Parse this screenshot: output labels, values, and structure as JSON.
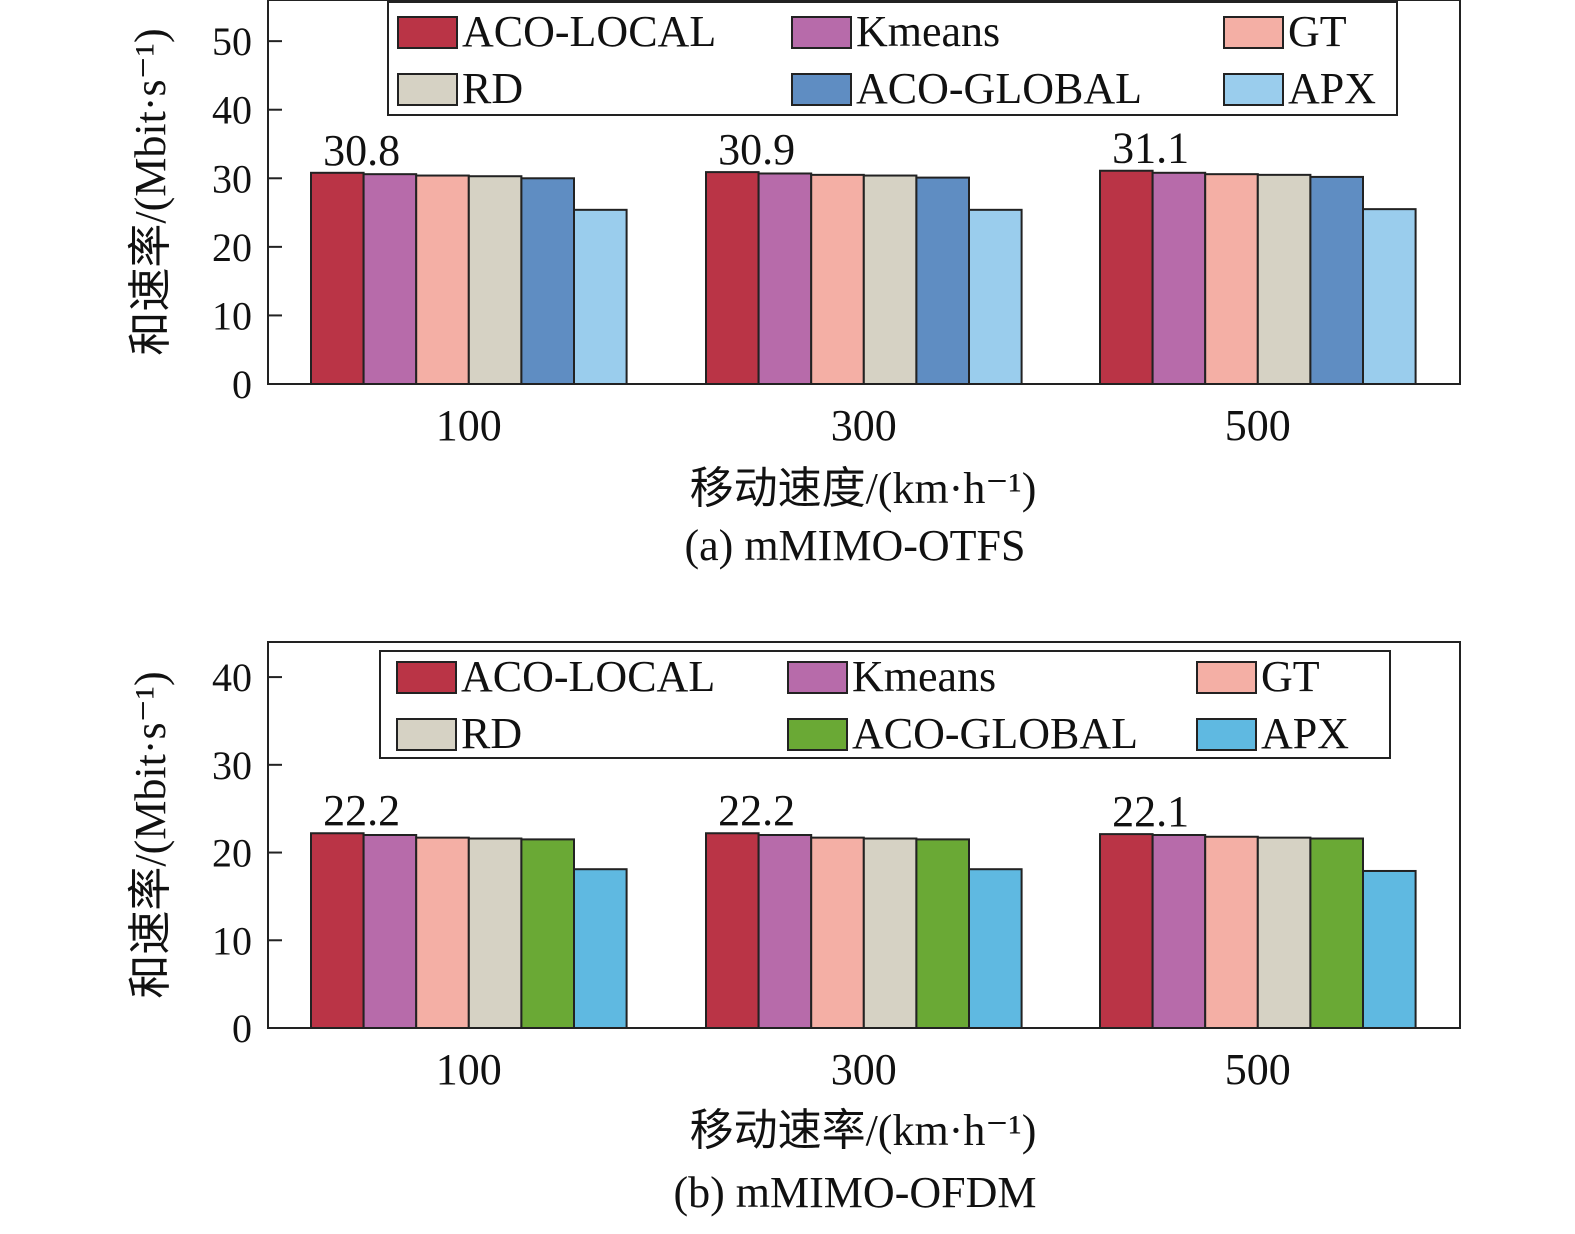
{
  "chart_data": [
    {
      "type": "bar",
      "title": "(a) mMIMO-OTFS",
      "xlabel": "移动速度/(km·h⁻¹)",
      "ylabel": "和速率/(Mbit·s⁻¹)",
      "ylim": [
        0,
        56
      ],
      "yticks": [
        0,
        10,
        20,
        30,
        40,
        50
      ],
      "categories": [
        "100",
        "300",
        "500"
      ],
      "annotations": [
        "30.8",
        "30.9",
        "31.1"
      ],
      "legend_position": "top",
      "series": [
        {
          "name": "ACO-LOCAL",
          "color": "#BA3446",
          "values": [
            30.8,
            30.9,
            31.1
          ]
        },
        {
          "name": "Kmeans",
          "color": "#B76BAA",
          "values": [
            30.6,
            30.7,
            30.8
          ]
        },
        {
          "name": "GT",
          "color": "#F4AFA5",
          "values": [
            30.4,
            30.5,
            30.6
          ]
        },
        {
          "name": "RD",
          "color": "#D6D2C4",
          "values": [
            30.3,
            30.4,
            30.5
          ]
        },
        {
          "name": "ACO-GLOBAL",
          "color": "#5F8DC2",
          "values": [
            30.0,
            30.1,
            30.2
          ]
        },
        {
          "name": "APX",
          "color": "#9ACDED",
          "values": [
            25.4,
            25.4,
            25.5
          ]
        }
      ]
    },
    {
      "type": "bar",
      "title": "(b) mMIMO-OFDM",
      "xlabel": "移动速率/(km·h⁻¹)",
      "ylabel": "和速率/(Mbit·s⁻¹)",
      "ylim": [
        0,
        44
      ],
      "yticks": [
        0,
        10,
        20,
        30,
        40
      ],
      "categories": [
        "100",
        "300",
        "500"
      ],
      "annotations": [
        "22.2",
        "22.2",
        "22.1"
      ],
      "legend_position": "top",
      "series": [
        {
          "name": "ACO-LOCAL",
          "color": "#BA3446",
          "values": [
            22.2,
            22.2,
            22.1
          ]
        },
        {
          "name": "Kmeans",
          "color": "#B76BAA",
          "values": [
            22.0,
            22.0,
            22.0
          ]
        },
        {
          "name": "GT",
          "color": "#F4AFA5",
          "values": [
            21.7,
            21.7,
            21.8
          ]
        },
        {
          "name": "RD",
          "color": "#D6D2C4",
          "values": [
            21.6,
            21.6,
            21.7
          ]
        },
        {
          "name": "ACO-GLOBAL",
          "color": "#6AA935",
          "values": [
            21.5,
            21.5,
            21.6
          ]
        },
        {
          "name": "APX",
          "color": "#5FB9E1",
          "values": [
            18.1,
            18.1,
            17.9
          ]
        }
      ]
    }
  ]
}
